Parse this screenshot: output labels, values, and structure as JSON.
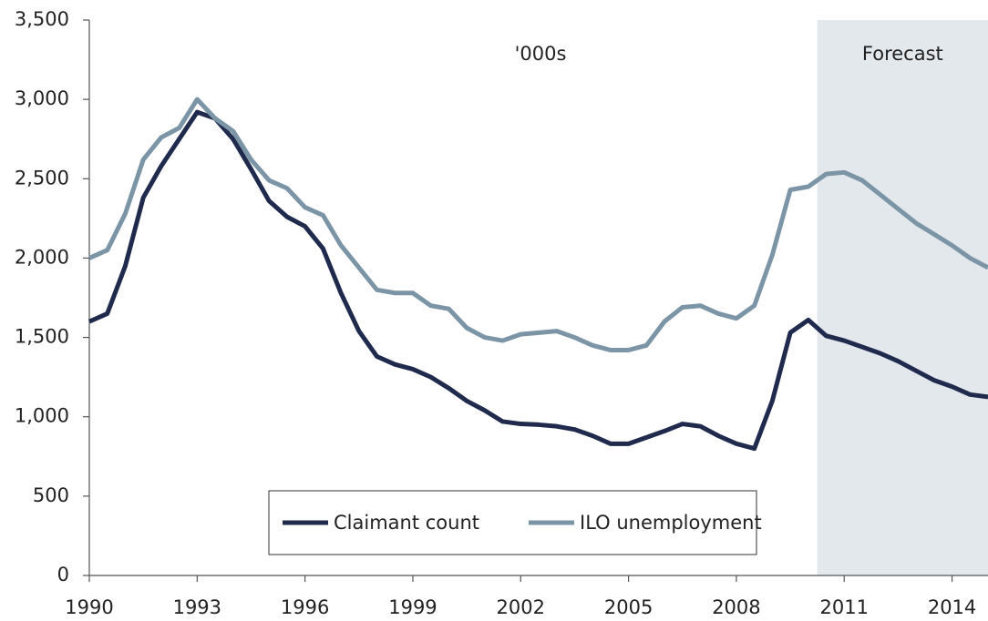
{
  "chart_data": {
    "type": "line",
    "annotations": [
      "'000s"
    ],
    "shaded_region": {
      "label": "Forecast",
      "start": 2010.25
    },
    "x": [
      1990,
      1990.5,
      1991,
      1991.5,
      1992,
      1992.5,
      1993,
      1993.5,
      1994,
      1994.5,
      1995,
      1995.5,
      1996,
      1996.5,
      1997,
      1997.5,
      1998,
      1998.5,
      1999,
      1999.5,
      2000,
      2000.5,
      2001,
      2001.5,
      2002,
      2002.5,
      2003,
      2003.5,
      2004,
      2004.5,
      2005,
      2005.5,
      2006,
      2006.5,
      2007,
      2007.5,
      2008,
      2008.5,
      2009,
      2009.5,
      2010,
      2010.5,
      2011,
      2011.5,
      2012,
      2012.5,
      2013,
      2013.5,
      2014,
      2014.5,
      2015
    ],
    "series": [
      {
        "name": "Claimant count",
        "color": "#1f2a4d",
        "values": [
          1600,
          1650,
          1950,
          2380,
          2580,
          2750,
          2920,
          2880,
          2750,
          2560,
          2360,
          2260,
          2200,
          2060,
          1780,
          1540,
          1380,
          1330,
          1300,
          1250,
          1180,
          1100,
          1040,
          970,
          955,
          950,
          940,
          920,
          880,
          830,
          830,
          870,
          910,
          955,
          940,
          880,
          830,
          800,
          1100,
          1530,
          1610,
          1510,
          1480,
          1440,
          1400,
          1350,
          1290,
          1230,
          1190,
          1140,
          1125
        ]
      },
      {
        "name": "ILO unemployment",
        "color": "#7b95a6",
        "values": [
          2000,
          2050,
          2280,
          2620,
          2760,
          2820,
          3000,
          2880,
          2800,
          2620,
          2490,
          2440,
          2320,
          2270,
          2080,
          1940,
          1800,
          1780,
          1780,
          1700,
          1680,
          1560,
          1500,
          1480,
          1520,
          1530,
          1540,
          1500,
          1450,
          1420,
          1420,
          1450,
          1600,
          1690,
          1700,
          1650,
          1620,
          1700,
          2020,
          2430,
          2450,
          2530,
          2540,
          2490,
          2400,
          2310,
          2220,
          2150,
          2080,
          2000,
          1940
        ]
      }
    ],
    "xlim": [
      1990,
      2015
    ],
    "xticks": [
      1990,
      1993,
      1996,
      1999,
      2002,
      2005,
      2008,
      2011,
      2014
    ],
    "ylim": [
      0,
      3500
    ],
    "yticks": [
      0,
      500,
      {
        "value": 1000,
        "label": "1,000"
      },
      {
        "value": 1500,
        "label": "1,500"
      },
      {
        "value": 2000,
        "label": "2,000"
      },
      {
        "value": 2500,
        "label": "2,500"
      },
      {
        "value": 3000,
        "label": "3,000"
      },
      {
        "value": 3500,
        "label": "3,500"
      }
    ]
  }
}
